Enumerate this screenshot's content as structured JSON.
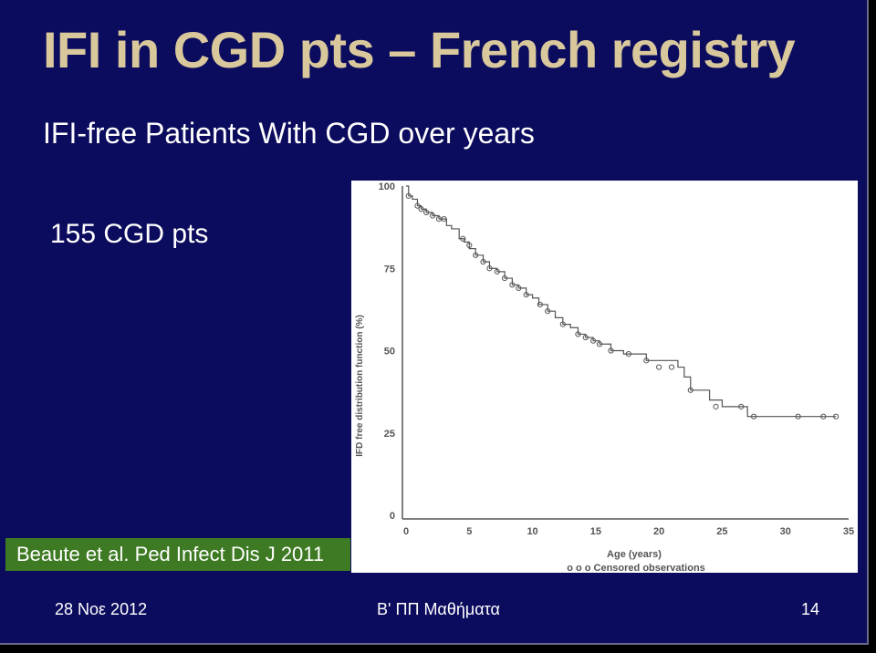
{
  "slide": {
    "title": "IFI in CGD pts – French registry",
    "subtitle": "IFI-free Patients With CGD over years",
    "patients": "155 CGD pts",
    "citation": "Beaute et al. Ped Infect Dis J 2011",
    "footer": {
      "date": "28 Νοε 2012",
      "center": "Β' ΠΠ Μαθήματα",
      "page": "14"
    }
  },
  "colors": {
    "background": "#0c0c5e",
    "title": "#d9c89c",
    "citation_bg": "#3e7a23",
    "line": "#555555"
  },
  "chart_data": {
    "type": "line",
    "xlabel": "Age (years)",
    "ylabel": "IFD free distribution function (%)",
    "legend": "o o o Censored observations",
    "xlim": [
      0,
      35
    ],
    "ylim": [
      0,
      100
    ],
    "xticks": [
      0,
      5,
      10,
      15,
      20,
      25,
      30,
      35
    ],
    "yticks": [
      0,
      25,
      50,
      75,
      100
    ],
    "grid": false,
    "series": [
      {
        "points": [
          [
            0,
            100
          ],
          [
            0.2,
            97
          ],
          [
            0.5,
            96
          ],
          [
            0.9,
            94
          ],
          [
            1.2,
            93
          ],
          [
            1.6,
            92
          ],
          [
            2.1,
            91
          ],
          [
            2.6,
            90
          ],
          [
            3.2,
            88
          ],
          [
            3.6,
            87
          ],
          [
            4.2,
            84
          ],
          [
            4.6,
            83
          ],
          [
            5.0,
            81
          ],
          [
            5.5,
            79
          ],
          [
            6.1,
            77
          ],
          [
            6.6,
            75
          ],
          [
            7.2,
            74
          ],
          [
            7.8,
            72
          ],
          [
            8.4,
            70
          ],
          [
            8.9,
            69
          ],
          [
            9.5,
            67
          ],
          [
            10.0,
            66
          ],
          [
            10.5,
            64
          ],
          [
            11.2,
            62
          ],
          [
            11.8,
            60
          ],
          [
            12.4,
            58
          ],
          [
            13.0,
            57
          ],
          [
            13.6,
            55
          ],
          [
            14.2,
            54
          ],
          [
            14.8,
            53
          ],
          [
            15.3,
            52
          ],
          [
            16.2,
            50
          ],
          [
            17.2,
            49
          ],
          [
            19.0,
            47
          ],
          [
            21.5,
            45
          ],
          [
            22.0,
            42
          ],
          [
            22.5,
            38
          ],
          [
            24.0,
            35
          ],
          [
            25.0,
            33
          ],
          [
            26.5,
            33
          ],
          [
            27.0,
            30
          ],
          [
            31.5,
            30
          ],
          [
            34.0,
            30
          ]
        ]
      }
    ],
    "censored": [
      [
        0.2,
        97
      ],
      [
        0.9,
        94
      ],
      [
        1.2,
        93
      ],
      [
        1.6,
        92
      ],
      [
        2.1,
        91
      ],
      [
        2.6,
        90
      ],
      [
        3.0,
        90
      ],
      [
        4.5,
        84
      ],
      [
        5.0,
        82
      ],
      [
        5.5,
        79
      ],
      [
        6.1,
        77
      ],
      [
        6.6,
        75
      ],
      [
        7.2,
        74
      ],
      [
        7.8,
        72
      ],
      [
        8.4,
        70
      ],
      [
        8.9,
        69
      ],
      [
        9.5,
        67
      ],
      [
        10.6,
        64
      ],
      [
        11.2,
        62
      ],
      [
        12.4,
        58
      ],
      [
        13.6,
        55
      ],
      [
        14.2,
        54
      ],
      [
        14.8,
        53
      ],
      [
        15.3,
        52
      ],
      [
        16.2,
        50
      ],
      [
        17.6,
        49
      ],
      [
        19.0,
        47
      ],
      [
        20.0,
        45
      ],
      [
        21.0,
        45
      ],
      [
        22.5,
        38
      ],
      [
        24.5,
        33
      ],
      [
        26.5,
        33
      ],
      [
        27.5,
        30
      ],
      [
        31.0,
        30
      ],
      [
        33.0,
        30
      ],
      [
        34.0,
        30
      ]
    ]
  }
}
